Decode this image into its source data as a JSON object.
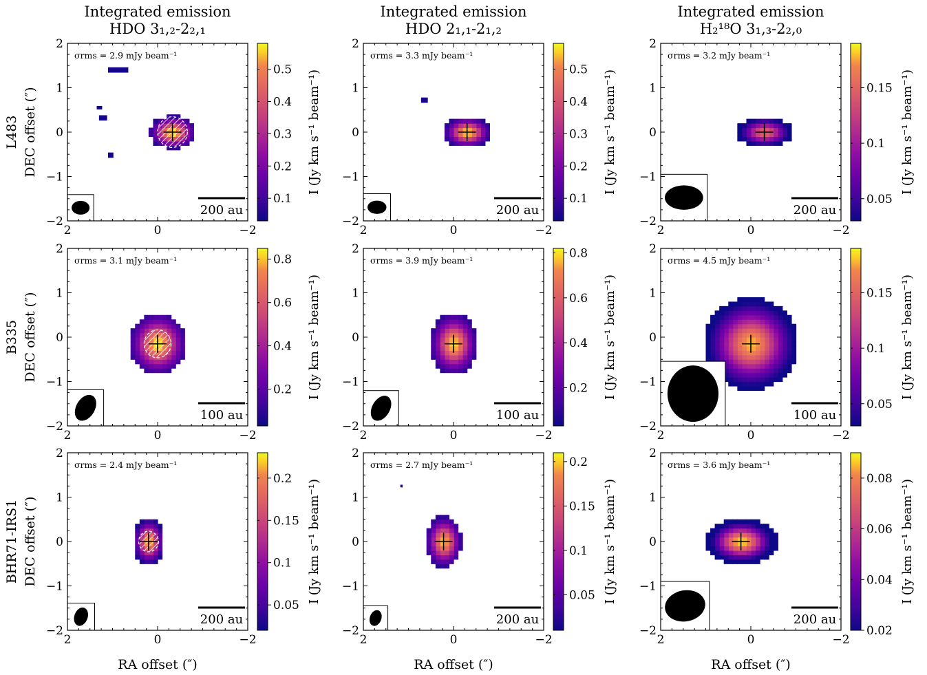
{
  "figure": {
    "xlabel": "RA offset (″)",
    "ylabel": "DEC offset (″)",
    "cbar_label": "I (Jy km s⁻¹ beam⁻¹)"
  },
  "columns": [
    {
      "title_line1": "Integrated emission",
      "title_line2": "HDO 3₁,₂-2₂,₁"
    },
    {
      "title_line1": "Integrated emission",
      "title_line2": "HDO 2₁,₁-2₁,₂"
    },
    {
      "title_line1": "Integrated emission",
      "title_line2": "H₂¹⁸O 3₁,₃-2₂,₀"
    }
  ],
  "rows": [
    {
      "source": "L483"
    },
    {
      "source": "B335"
    },
    {
      "source": "BHR71-IRS1"
    }
  ],
  "chart_data": [
    {
      "type": "heatmap",
      "row": 0,
      "col": 0,
      "rms": "σrms = 2.9 mJy beam⁻¹",
      "scale": "200 au",
      "xlim": [
        2,
        -2
      ],
      "ylim": [
        -2,
        2
      ],
      "xticks": [
        2,
        0,
        -2
      ],
      "yticks": [
        2,
        1,
        0,
        -1,
        -2
      ],
      "vmin": 0.03,
      "vmax": 0.58,
      "cbar_ticks": [
        0.1,
        0.2,
        0.3,
        0.4,
        0.5
      ],
      "blob": {
        "cx": -0.33,
        "cy": 0.0,
        "sx": 0.45,
        "sy": 0.32,
        "peak": 0.58
      },
      "extras": [
        {
          "x": 1.1,
          "y": 1.4,
          "w": 0.45,
          "h": 0.12
        },
        {
          "x": 1.3,
          "y": 0.32,
          "w": 0.18,
          "h": 0.12
        },
        {
          "x": 1.1,
          "y": -0.52,
          "w": 0.12,
          "h": 0.12
        },
        {
          "x": 1.35,
          "y": 0.55,
          "w": 0.12,
          "h": 0.08
        }
      ],
      "hatch_r": 0.33,
      "cross": {
        "x": -0.33,
        "y": 0.0
      },
      "beam": {
        "bmaj": 0.4,
        "bmin": 0.31,
        "pa": 90
      }
    },
    {
      "type": "heatmap",
      "row": 0,
      "col": 1,
      "rms": "σrms = 3.3 mJy beam⁻¹",
      "scale": "200 au",
      "xlim": [
        2,
        -2
      ],
      "ylim": [
        -2,
        2
      ],
      "xticks": [
        2,
        0,
        -2
      ],
      "yticks": [
        2,
        1,
        0,
        -1,
        -2
      ],
      "vmin": 0.03,
      "vmax": 0.58,
      "cbar_ticks": [
        0.1,
        0.2,
        0.3,
        0.4,
        0.5
      ],
      "blob": {
        "cx": -0.3,
        "cy": 0.0,
        "sx": 0.45,
        "sy": 0.3,
        "peak": 0.57
      },
      "extras": [
        {
          "x": 0.72,
          "y": 0.72,
          "w": 0.15,
          "h": 0.12
        }
      ],
      "hatch_r": 0,
      "cross": {
        "x": -0.3,
        "y": 0.0
      },
      "beam": {
        "bmaj": 0.42,
        "bmin": 0.3,
        "pa": 90
      }
    },
    {
      "type": "heatmap",
      "row": 0,
      "col": 2,
      "rms": "σrms = 3.2 mJy beam⁻¹",
      "scale": "200 au",
      "xlim": [
        2,
        -2
      ],
      "ylim": [
        -2,
        2
      ],
      "xticks": [
        2,
        0,
        -2
      ],
      "yticks": [
        2,
        1,
        0,
        -1,
        -2
      ],
      "vmin": 0.03,
      "vmax": 0.19,
      "cbar_ticks": [
        0.05,
        0.1,
        0.15
      ],
      "blob": {
        "cx": -0.3,
        "cy": 0.0,
        "sx": 0.55,
        "sy": 0.3,
        "peak": 0.15
      },
      "extras": [],
      "hatch_r": 0,
      "cross": {
        "x": -0.3,
        "y": 0.0
      },
      "beam": {
        "bmaj": 0.85,
        "bmin": 0.55,
        "pa": 90
      }
    },
    {
      "type": "heatmap",
      "row": 1,
      "col": 0,
      "rms": "σrms = 3.1 mJy beam⁻¹",
      "scale": "100 au",
      "xlim": [
        2,
        -2
      ],
      "ylim": [
        -2,
        2
      ],
      "xticks": [
        2,
        0,
        -2
      ],
      "yticks": [
        2,
        1,
        0,
        -1,
        -2
      ],
      "vmin": 0.03,
      "vmax": 0.85,
      "cbar_ticks": [
        0.2,
        0.4,
        0.6,
        0.8
      ],
      "blob": {
        "cx": 0.0,
        "cy": -0.15,
        "sx": 0.55,
        "sy": 0.6,
        "peak": 0.85
      },
      "extras": [],
      "hatch_r": 0.3,
      "cross": {
        "x": 0.0,
        "y": -0.15
      },
      "beam": {
        "bmaj": 0.62,
        "bmin": 0.42,
        "pa": 30
      }
    },
    {
      "type": "heatmap",
      "row": 1,
      "col": 1,
      "rms": "σrms = 3.9 mJy beam⁻¹",
      "scale": "100 au",
      "xlim": [
        2,
        -2
      ],
      "ylim": [
        -2,
        2
      ],
      "xticks": [
        2,
        0,
        -2
      ],
      "yticks": [
        2,
        1,
        0,
        -1,
        -2
      ],
      "vmin": 0.03,
      "vmax": 0.82,
      "cbar_ticks": [
        0.2,
        0.4,
        0.6,
        0.8
      ],
      "blob": {
        "cx": 0.0,
        "cy": -0.15,
        "sx": 0.45,
        "sy": 0.6,
        "peak": 0.8
      },
      "extras": [],
      "hatch_r": 0,
      "cross": {
        "x": 0.0,
        "y": -0.15
      },
      "beam": {
        "bmaj": 0.6,
        "bmin": 0.4,
        "pa": 30
      }
    },
    {
      "type": "heatmap",
      "row": 1,
      "col": 2,
      "rms": "σrms = 4.5 mJy beam⁻¹",
      "scale": "100 au",
      "xlim": [
        2,
        -2
      ],
      "ylim": [
        -2,
        2
      ],
      "xticks": [
        2,
        0,
        -2
      ],
      "yticks": [
        2,
        1,
        0,
        -1,
        -2
      ],
      "vmin": 0.03,
      "vmax": 0.19,
      "cbar_ticks": [
        0.05,
        0.1,
        0.15
      ],
      "blob": {
        "cx": 0.0,
        "cy": -0.15,
        "sx": 0.9,
        "sy": 0.9,
        "peak": 0.18
      },
      "extras": [],
      "hatch_r": 0,
      "cross": {
        "x": 0.0,
        "y": -0.15
      },
      "beam": {
        "bmaj": 1.25,
        "bmin": 1.15,
        "pa": 0
      }
    },
    {
      "type": "heatmap",
      "row": 2,
      "col": 0,
      "rms": "σrms = 2.4 mJy beam⁻¹",
      "scale": "200 au",
      "xlim": [
        2,
        -2
      ],
      "ylim": [
        -2,
        2
      ],
      "xticks": [
        2,
        0,
        -2
      ],
      "yticks": [
        2,
        1,
        0,
        -1,
        -2
      ],
      "vmin": 0.02,
      "vmax": 0.23,
      "cbar_ticks": [
        0.05,
        0.1,
        0.15,
        0.2
      ],
      "blob": {
        "cx": 0.2,
        "cy": 0.0,
        "sx": 0.3,
        "sy": 0.45,
        "peak": 0.22
      },
      "extras": [],
      "hatch_r": 0.22,
      "cross": {
        "x": 0.2,
        "y": 0.0
      },
      "beam": {
        "bmaj": 0.42,
        "bmin": 0.3,
        "pa": 20
      }
    },
    {
      "type": "heatmap",
      "row": 2,
      "col": 1,
      "rms": "σrms = 2.7 mJy beam⁻¹",
      "scale": "200 au",
      "xlim": [
        2,
        -2
      ],
      "ylim": [
        -2,
        2
      ],
      "xticks": [
        2,
        0,
        -2
      ],
      "yticks": [
        2,
        1,
        0,
        -1,
        -2
      ],
      "vmin": 0.01,
      "vmax": 0.21,
      "cbar_ticks": [
        0.05,
        0.1,
        0.15,
        0.2
      ],
      "blob": {
        "cx": 0.22,
        "cy": 0.0,
        "sx": 0.35,
        "sy": 0.5,
        "peak": 0.2
      },
      "extras": [
        {
          "x": 1.18,
          "y": 1.25,
          "w": 0.05,
          "h": 0.06
        }
      ],
      "hatch_r": 0,
      "cross": {
        "x": 0.22,
        "y": 0.0
      },
      "beam": {
        "bmaj": 0.36,
        "bmin": 0.26,
        "pa": 20
      }
    },
    {
      "type": "heatmap",
      "row": 2,
      "col": 2,
      "rms": "σrms = 3.6 mJy beam⁻¹",
      "scale": "200 au",
      "xlim": [
        2,
        -2
      ],
      "ylim": [
        -2,
        2
      ],
      "xticks": [
        2,
        0,
        -2
      ],
      "yticks": [
        2,
        1,
        0,
        -1,
        -2
      ],
      "vmin": 0.02,
      "vmax": 0.09,
      "cbar_ticks": [
        0.02,
        0.04,
        0.06,
        0.08
      ],
      "blob": {
        "cx": 0.22,
        "cy": 0.0,
        "sx": 0.7,
        "sy": 0.45,
        "peak": 0.088
      },
      "extras": [],
      "hatch_r": 0,
      "cross": {
        "x": 0.22,
        "y": 0.0
      },
      "beam": {
        "bmaj": 0.9,
        "bmin": 0.7,
        "pa": 80
      }
    }
  ]
}
